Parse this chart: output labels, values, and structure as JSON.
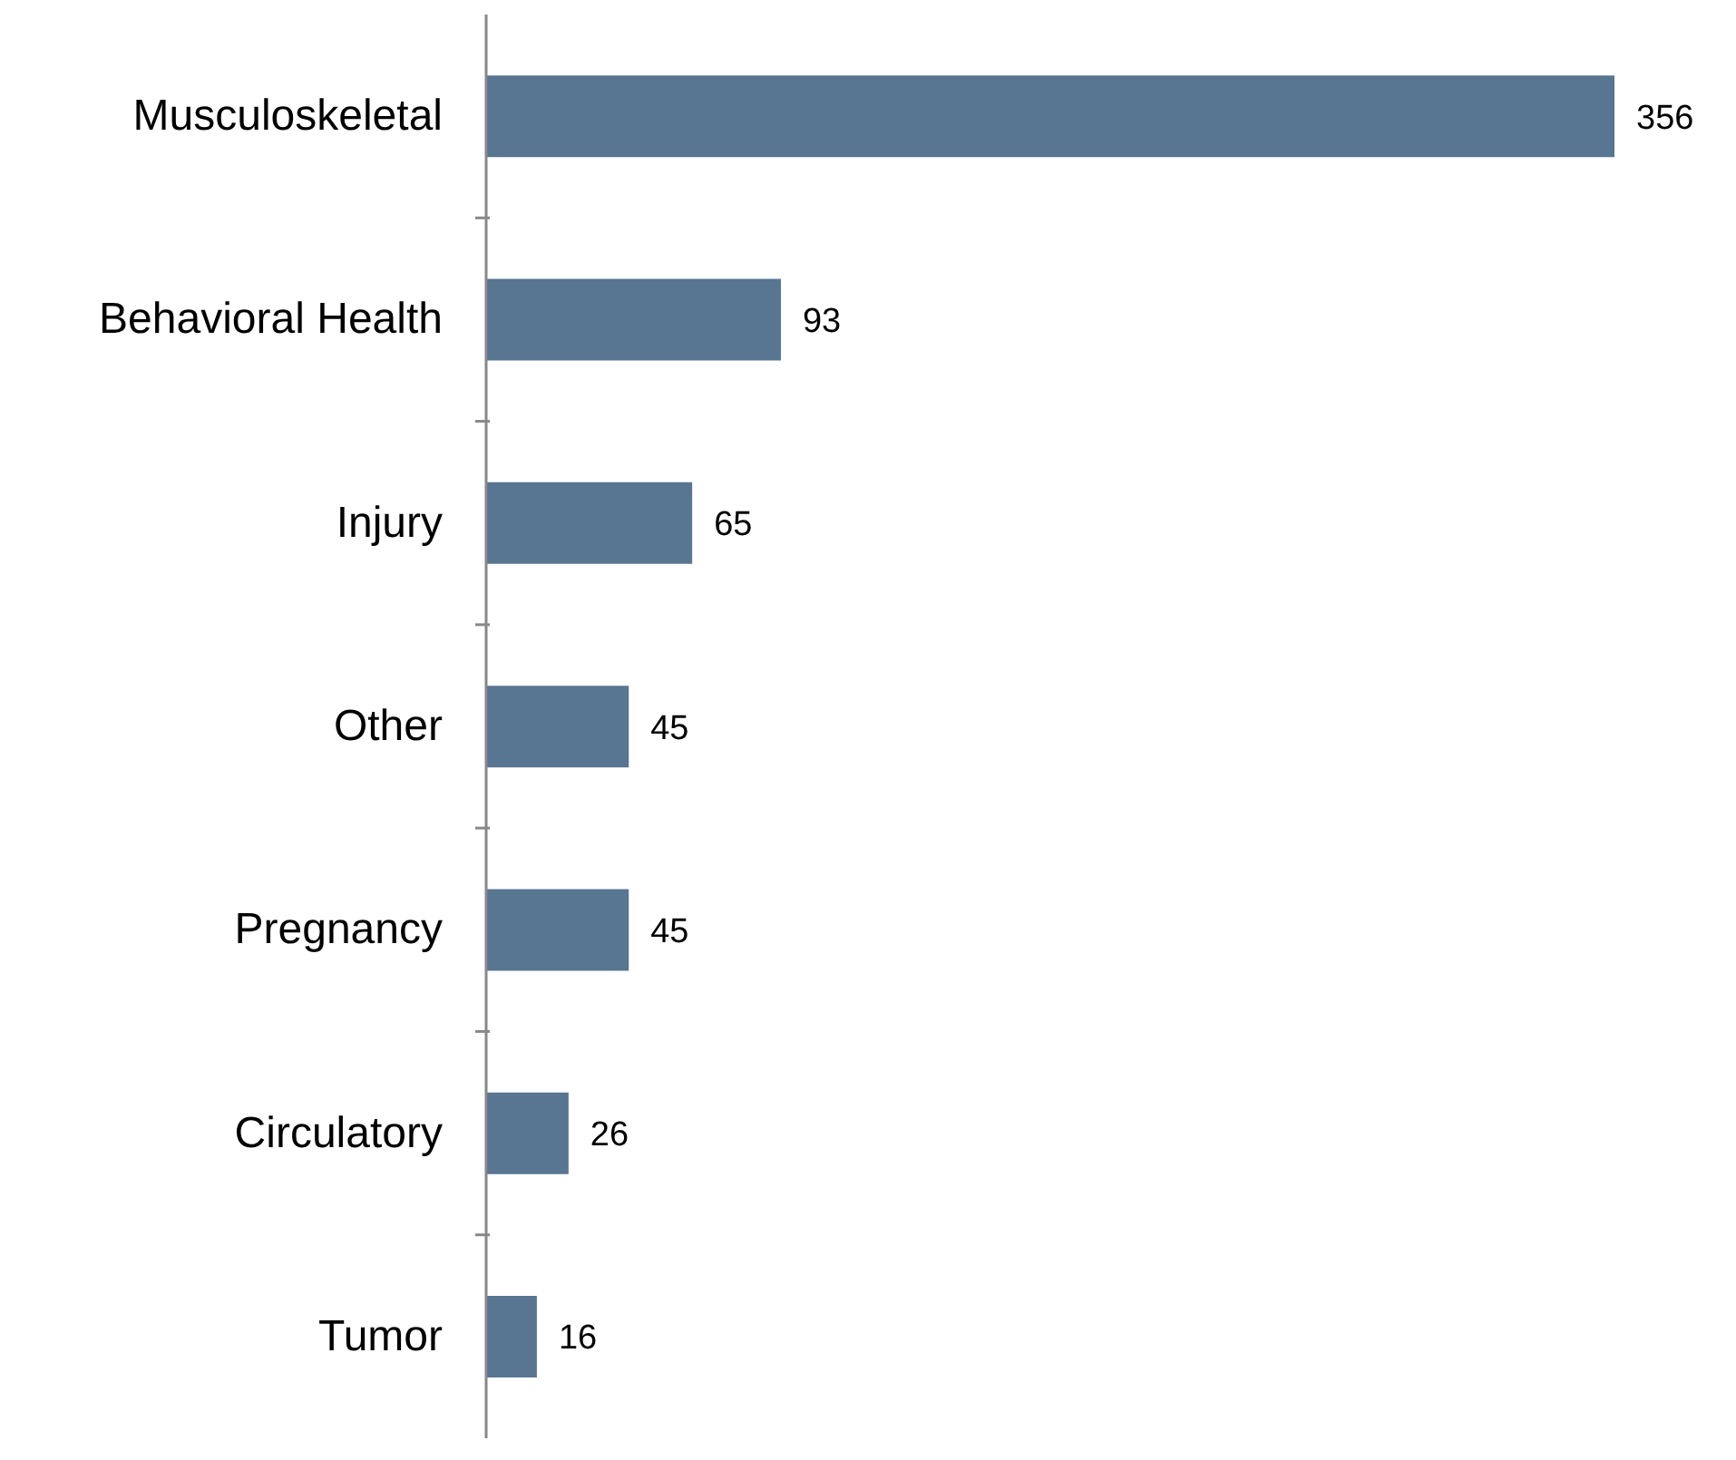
{
  "chart_data": {
    "type": "bar",
    "orientation": "horizontal",
    "categories": [
      "Musculoskeletal",
      "Behavioral Health",
      "Injury",
      "Other",
      "Pregnancy",
      "Circulatory",
      "Tumor"
    ],
    "values": [
      356,
      93,
      65,
      45,
      45,
      26,
      16
    ],
    "color": "#587591",
    "data_labels": true
  }
}
